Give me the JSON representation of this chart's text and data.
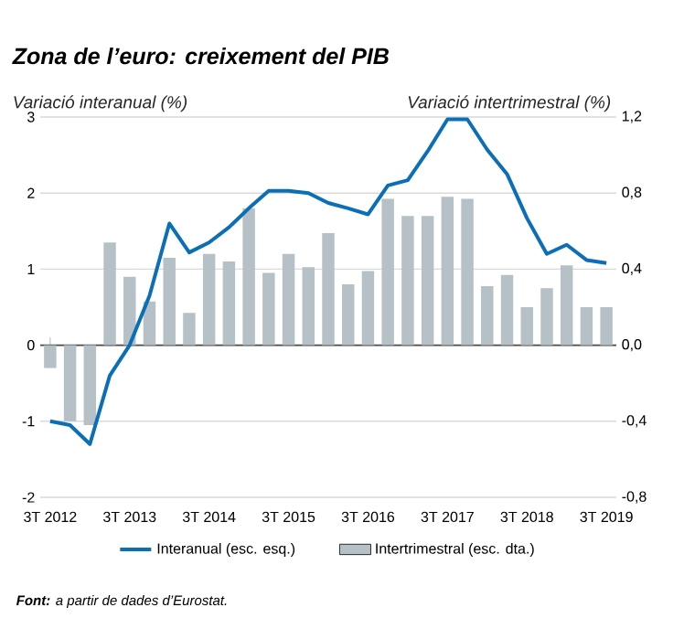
{
  "chart_data": {
    "type": "bar",
    "title": "Zona de l’euro: creixement del PIB",
    "ylabel": "Variació interanual (%)",
    "y2label": "Variació intertrimestral (%)",
    "categories": [
      "3T 2012",
      null,
      null,
      null,
      "3T 2013",
      null,
      null,
      null,
      "3T 2014",
      null,
      null,
      null,
      "3T 2015",
      null,
      null,
      null,
      "3T 2016",
      null,
      null,
      null,
      "3T 2017",
      null,
      null,
      null,
      "3T 2018",
      null,
      null,
      null,
      "3T 2019"
    ],
    "series": [
      {
        "name": "Interanual (esc. esq.)",
        "type": "line",
        "axis": "y",
        "color": "#0b6fb8",
        "values": [
          -1.0,
          -1.05,
          -1.3,
          -0.4,
          0.0,
          0.65,
          1.6,
          1.22,
          1.35,
          1.55,
          1.8,
          2.03,
          2.03,
          2.0,
          1.87,
          1.8,
          1.72,
          2.1,
          2.17,
          2.55,
          2.97,
          2.97,
          2.57,
          2.25,
          1.67,
          1.2,
          1.32,
          1.12,
          1.08
        ]
      },
      {
        "name": "Intertrimestral (esc. dta.)",
        "axis": "y2",
        "color": "#b5c1c6",
        "values": [
          -0.12,
          -0.4,
          -0.42,
          0.54,
          0.36,
          0.23,
          0.46,
          0.17,
          0.48,
          0.44,
          0.72,
          0.38,
          0.48,
          0.41,
          0.59,
          0.32,
          0.39,
          0.77,
          0.68,
          0.68,
          0.78,
          0.77,
          0.31,
          0.37,
          0.2,
          0.3,
          0.42,
          0.2,
          0.2
        ]
      }
    ],
    "ylim": [
      -2,
      3
    ],
    "yticks": [
      -2,
      -1,
      0,
      1,
      2,
      3
    ],
    "y2lim": [
      -0.8,
      1.2
    ],
    "y2ticks": [
      {
        "value": -0.8,
        "label": "-0,8"
      },
      {
        "value": -0.4,
        "label": "-0,4"
      },
      {
        "value": 0,
        "label": "0,0"
      },
      {
        "value": 0.4,
        "label": "0,4"
      },
      {
        "value": 0.8,
        "label": "0,8"
      },
      {
        "value": 1.2,
        "label": "1,2"
      }
    ],
    "grid": "y",
    "legend": "bottom",
    "annotations": [
      "**Font:** a partir de dades d’Eurostat."
    ]
  }
}
